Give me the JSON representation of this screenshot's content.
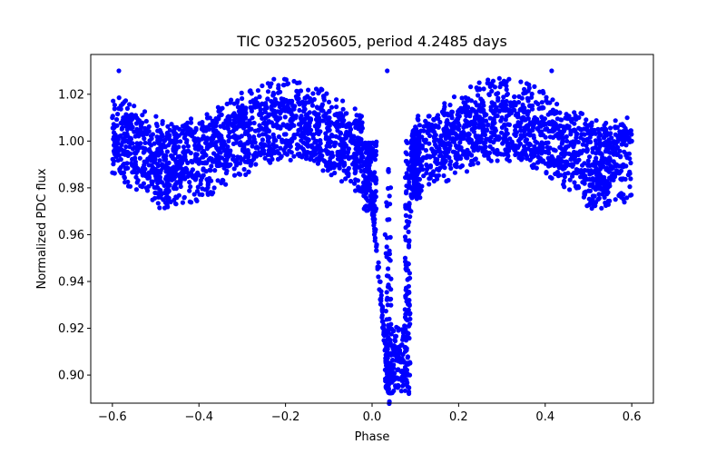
{
  "chart_data": {
    "type": "scatter",
    "title": "TIC 0325205605, period 4.2485 days",
    "xlabel": "Phase",
    "ylabel": "Normalized PDC flux",
    "xlim": [
      -0.65,
      0.65
    ],
    "ylim": [
      0.888,
      1.037
    ],
    "grid": false,
    "marker_color": "#0000ff",
    "x_ticks": [
      {
        "value": -0.6,
        "label": "−0.6"
      },
      {
        "value": -0.4,
        "label": "−0.4"
      },
      {
        "value": -0.2,
        "label": "−0.2"
      },
      {
        "value": 0.0,
        "label": "0.0"
      },
      {
        "value": 0.2,
        "label": "0.2"
      },
      {
        "value": 0.4,
        "label": "0.4"
      },
      {
        "value": 0.6,
        "label": "0.6"
      }
    ],
    "y_ticks": [
      {
        "value": 0.9,
        "label": "0.90"
      },
      {
        "value": 0.92,
        "label": "0.92"
      },
      {
        "value": 0.94,
        "label": "0.94"
      },
      {
        "value": 0.96,
        "label": "0.96"
      },
      {
        "value": 0.98,
        "label": "0.98"
      },
      {
        "value": 1.0,
        "label": "1.00"
      },
      {
        "value": 1.02,
        "label": "1.02"
      }
    ],
    "series": [
      {
        "name": "PDC flux",
        "phase_range": [
          -0.6,
          0.6
        ],
        "baseline_flux": 1.0,
        "scatter_halfwidth": 0.012,
        "sinusoid_amplitude": 0.009,
        "sinusoid_cycles_per_phase": 2.0,
        "primary_dip": {
          "center": 0.055,
          "min_flux": 0.892,
          "halfwidth": 0.03
        },
        "secondary_lobe": {
          "center": 0.07,
          "min_flux": 0.892
        },
        "low_clumps": [
          {
            "phase": -0.48,
            "min_flux": 0.971
          },
          {
            "phase": 0.52,
            "min_flux": 0.971
          }
        ],
        "outlier_points": [
          {
            "x": -0.585,
            "y": 1.03
          },
          {
            "x": 0.415,
            "y": 1.03
          },
          {
            "x": 0.035,
            "y": 1.03
          }
        ],
        "sample_points": [
          {
            "x": -0.6,
            "y": 1.01
          },
          {
            "x": -0.55,
            "y": 1.015
          },
          {
            "x": -0.5,
            "y": 0.985
          },
          {
            "x": -0.45,
            "y": 0.99
          },
          {
            "x": -0.4,
            "y": 1.0
          },
          {
            "x": -0.35,
            "y": 0.995
          },
          {
            "x": -0.3,
            "y": 1.01
          },
          {
            "x": -0.25,
            "y": 1.005
          },
          {
            "x": -0.2,
            "y": 1.0
          },
          {
            "x": -0.15,
            "y": 1.005
          },
          {
            "x": -0.1,
            "y": 1.01
          },
          {
            "x": -0.05,
            "y": 1.0
          },
          {
            "x": 0.0,
            "y": 0.995
          },
          {
            "x": 0.03,
            "y": 0.96
          },
          {
            "x": 0.05,
            "y": 0.91
          },
          {
            "x": 0.06,
            "y": 0.895
          },
          {
            "x": 0.075,
            "y": 0.9
          },
          {
            "x": 0.09,
            "y": 0.97
          },
          {
            "x": 0.1,
            "y": 1.005
          },
          {
            "x": 0.15,
            "y": 1.01
          },
          {
            "x": 0.2,
            "y": 1.005
          },
          {
            "x": 0.25,
            "y": 1.0
          },
          {
            "x": 0.3,
            "y": 1.01
          },
          {
            "x": 0.35,
            "y": 1.01
          },
          {
            "x": 0.4,
            "y": 1.005
          },
          {
            "x": 0.45,
            "y": 1.0
          },
          {
            "x": 0.5,
            "y": 0.99
          },
          {
            "x": 0.55,
            "y": 0.995
          },
          {
            "x": 0.6,
            "y": 1.0
          }
        ]
      }
    ]
  }
}
